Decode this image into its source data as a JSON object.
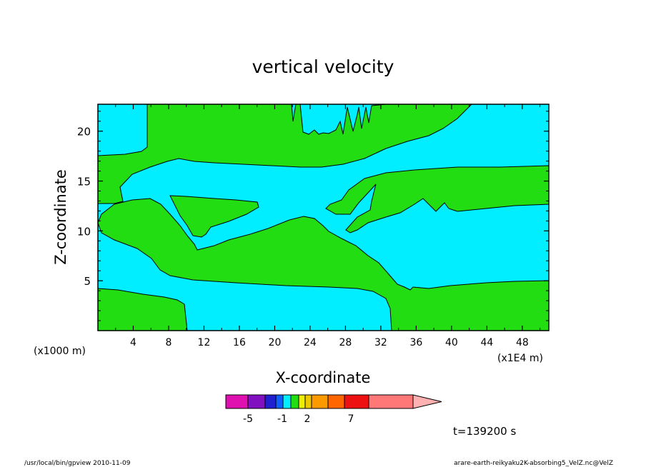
{
  "chart_data": {
    "type": "contour",
    "title": "vertical velocity",
    "xlabel": "X-coordinate",
    "ylabel": "Z-coordinate",
    "x_scale_label": "(x1000 m)",
    "x_unit_label": "(x1E4 m)",
    "xlim": [
      0,
      51
    ],
    "ylim": [
      0,
      22.7
    ],
    "x_ticks": [
      "4",
      "8",
      "12",
      "16",
      "20",
      "24",
      "28",
      "32",
      "36",
      "40",
      "44",
      "48"
    ],
    "y_ticks": [
      "5",
      "10",
      "15",
      "20"
    ],
    "regions": [
      {
        "name": "negative",
        "color": "#00eeff"
      },
      {
        "name": "positive",
        "color": "#22dd11"
      }
    ],
    "colorbar": {
      "colors": [
        "#e010b0",
        "#8010c0",
        "#2020d0",
        "#1060ff",
        "#00eeff",
        "#22dd11",
        "#eeee00",
        "#eec800",
        "#ff9900",
        "#ff6600",
        "#ee1111",
        "#ff7777",
        "#ffb0b0"
      ],
      "labels": [
        "-5",
        "-1",
        "2",
        "7"
      ]
    },
    "time_label": "t=139200 s"
  },
  "footer": {
    "left": "/usr/local/bin/gpview  2010-11-09",
    "right": "arare-earth-reikyaku2K-absorbing5_VelZ.nc@VelZ"
  }
}
